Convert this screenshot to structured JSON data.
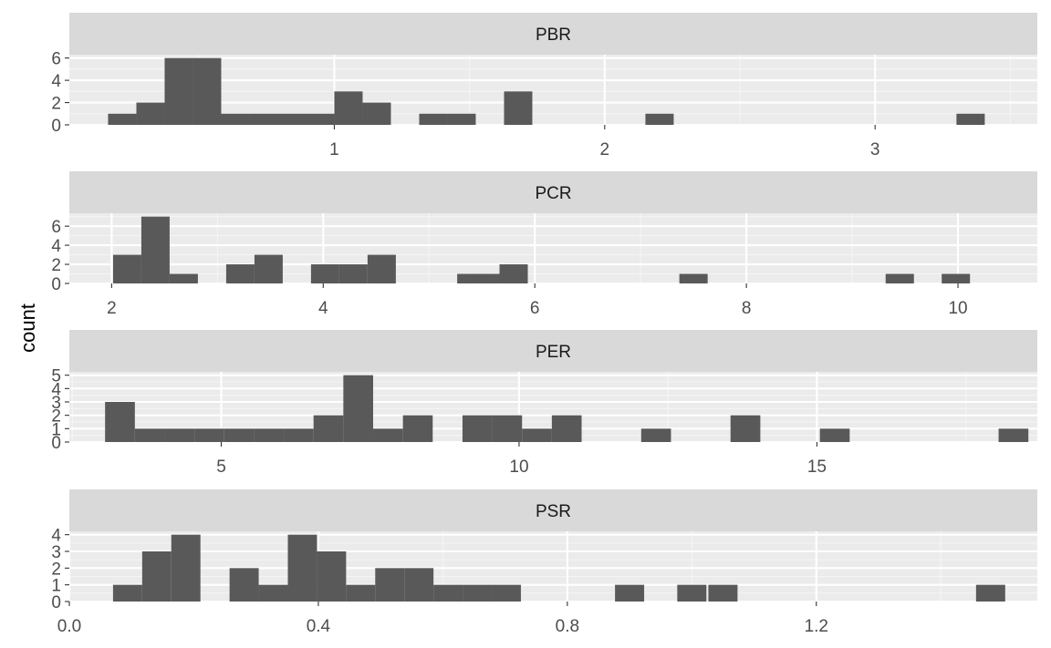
{
  "figure": {
    "ylabel": "count"
  },
  "chart_data": [
    {
      "type": "bar",
      "facet": "PBR",
      "xlabel": "",
      "ylabel": "count",
      "xlim": [
        0.02,
        3.6
      ],
      "ylim": [
        0,
        6.3
      ],
      "x_ticks": [
        1,
        2,
        3
      ],
      "x_tick_labels": [
        "1",
        "2",
        "3"
      ],
      "x_minor_ticks": [
        0.5,
        1.5,
        2.5,
        3.5
      ],
      "y_ticks": [
        0,
        2,
        4,
        6
      ],
      "y_tick_labels": [
        "0",
        "2",
        "4",
        "6"
      ],
      "y_minor_ticks": [
        1,
        3,
        5
      ],
      "bin_width": 0.1046,
      "bins": [
        {
          "x": 0.2156,
          "count": 1
        },
        {
          "x": 0.3202,
          "count": 2
        },
        {
          "x": 0.4248,
          "count": 6
        },
        {
          "x": 0.5294,
          "count": 6
        },
        {
          "x": 0.634,
          "count": 1
        },
        {
          "x": 0.7386,
          "count": 1
        },
        {
          "x": 0.8432,
          "count": 1
        },
        {
          "x": 0.9478,
          "count": 1
        },
        {
          "x": 1.0524,
          "count": 3
        },
        {
          "x": 1.157,
          "count": 2
        },
        {
          "x": 1.3662,
          "count": 1
        },
        {
          "x": 1.4708,
          "count": 1
        },
        {
          "x": 1.68,
          "count": 3
        },
        {
          "x": 2.2029,
          "count": 1
        },
        {
          "x": 3.3533,
          "count": 1
        }
      ]
    },
    {
      "type": "bar",
      "facet": "PCR",
      "xlabel": "",
      "ylabel": "count",
      "xlim": [
        1.6,
        10.75
      ],
      "ylim": [
        0,
        7.35
      ],
      "x_ticks": [
        2,
        4,
        6,
        8,
        10
      ],
      "x_tick_labels": [
        "2",
        "4",
        "6",
        "8",
        "10"
      ],
      "x_minor_ticks": [
        3,
        5,
        7,
        9
      ],
      "y_ticks": [
        0,
        2,
        4,
        6
      ],
      "y_tick_labels": [
        "0",
        "2",
        "4",
        "6"
      ],
      "y_minor_ticks": [
        1,
        3,
        5,
        7
      ],
      "bin_width": 0.2673,
      "bins": [
        {
          "x": 2.147,
          "count": 3
        },
        {
          "x": 2.4143,
          "count": 7
        },
        {
          "x": 2.6816,
          "count": 1
        },
        {
          "x": 3.2162,
          "count": 2
        },
        {
          "x": 3.4835,
          "count": 3
        },
        {
          "x": 4.0181,
          "count": 2
        },
        {
          "x": 4.2854,
          "count": 2
        },
        {
          "x": 4.5527,
          "count": 3
        },
        {
          "x": 5.4,
          "count": 1
        },
        {
          "x": 5.6,
          "count": 1
        },
        {
          "x": 5.8,
          "count": 2
        },
        {
          "x": 7.5,
          "count": 1
        },
        {
          "x": 9.45,
          "count": 1
        },
        {
          "x": 9.98,
          "count": 1
        }
      ]
    },
    {
      "type": "bar",
      "facet": "PER",
      "xlabel": "",
      "ylabel": "count",
      "xlim": [
        2.45,
        18.7
      ],
      "ylim": [
        0,
        5.25
      ],
      "x_ticks": [
        5,
        10,
        15
      ],
      "x_tick_labels": [
        "5",
        "10",
        "15"
      ],
      "x_minor_ticks": [
        2.5,
        7.5,
        12.5,
        17.5
      ],
      "y_ticks": [
        0,
        1,
        2,
        3,
        4,
        5
      ],
      "y_tick_labels": [
        "0",
        "1",
        "2",
        "3",
        "4",
        "5"
      ],
      "y_minor_ticks": [
        0.5,
        1.5,
        2.5,
        3.5,
        4.5
      ],
      "bin_width": 0.5,
      "bins": [
        {
          "x": 3.3,
          "count": 3
        },
        {
          "x": 3.8,
          "count": 1
        },
        {
          "x": 4.3,
          "count": 1
        },
        {
          "x": 4.8,
          "count": 1
        },
        {
          "x": 5.3,
          "count": 1
        },
        {
          "x": 5.8,
          "count": 1
        },
        {
          "x": 6.3,
          "count": 1
        },
        {
          "x": 6.8,
          "count": 2
        },
        {
          "x": 7.3,
          "count": 5
        },
        {
          "x": 7.8,
          "count": 1
        },
        {
          "x": 8.3,
          "count": 2
        },
        {
          "x": 9.3,
          "count": 2
        },
        {
          "x": 9.8,
          "count": 2
        },
        {
          "x": 10.3,
          "count": 1
        },
        {
          "x": 10.8,
          "count": 2
        },
        {
          "x": 12.3,
          "count": 1
        },
        {
          "x": 13.8,
          "count": 2
        },
        {
          "x": 15.3,
          "count": 1
        },
        {
          "x": 18.3,
          "count": 1
        }
      ]
    },
    {
      "type": "bar",
      "facet": "PSR",
      "xlabel": "",
      "ylabel": "count",
      "xlim": [
        0.0,
        1.555
      ],
      "ylim": [
        0,
        4.2
      ],
      "x_ticks": [
        0.0,
        0.4,
        0.8,
        1.2
      ],
      "x_tick_labels": [
        "0.0",
        "0.4",
        "0.8",
        "1.2"
      ],
      "x_minor_ticks": [
        0.2,
        0.6,
        1.0,
        1.4
      ],
      "y_ticks": [
        0,
        1,
        2,
        3,
        4
      ],
      "y_tick_labels": [
        "0",
        "1",
        "2",
        "3",
        "4"
      ],
      "y_minor_ticks": [
        0.5,
        1.5,
        2.5,
        3.5
      ],
      "bin_width": 0.0468,
      "bins": [
        {
          "x": 0.0936,
          "count": 1
        },
        {
          "x": 0.1404,
          "count": 3
        },
        {
          "x": 0.1872,
          "count": 4
        },
        {
          "x": 0.2808,
          "count": 2
        },
        {
          "x": 0.3276,
          "count": 1
        },
        {
          "x": 0.3744,
          "count": 4
        },
        {
          "x": 0.4212,
          "count": 3
        },
        {
          "x": 0.468,
          "count": 1
        },
        {
          "x": 0.5148,
          "count": 2
        },
        {
          "x": 0.5616,
          "count": 2
        },
        {
          "x": 0.6084,
          "count": 1
        },
        {
          "x": 0.6552,
          "count": 1
        },
        {
          "x": 0.702,
          "count": 1
        },
        {
          "x": 0.9,
          "count": 1
        },
        {
          "x": 1.0,
          "count": 1
        },
        {
          "x": 1.05,
          "count": 1
        },
        {
          "x": 1.48,
          "count": 1
        }
      ]
    }
  ]
}
